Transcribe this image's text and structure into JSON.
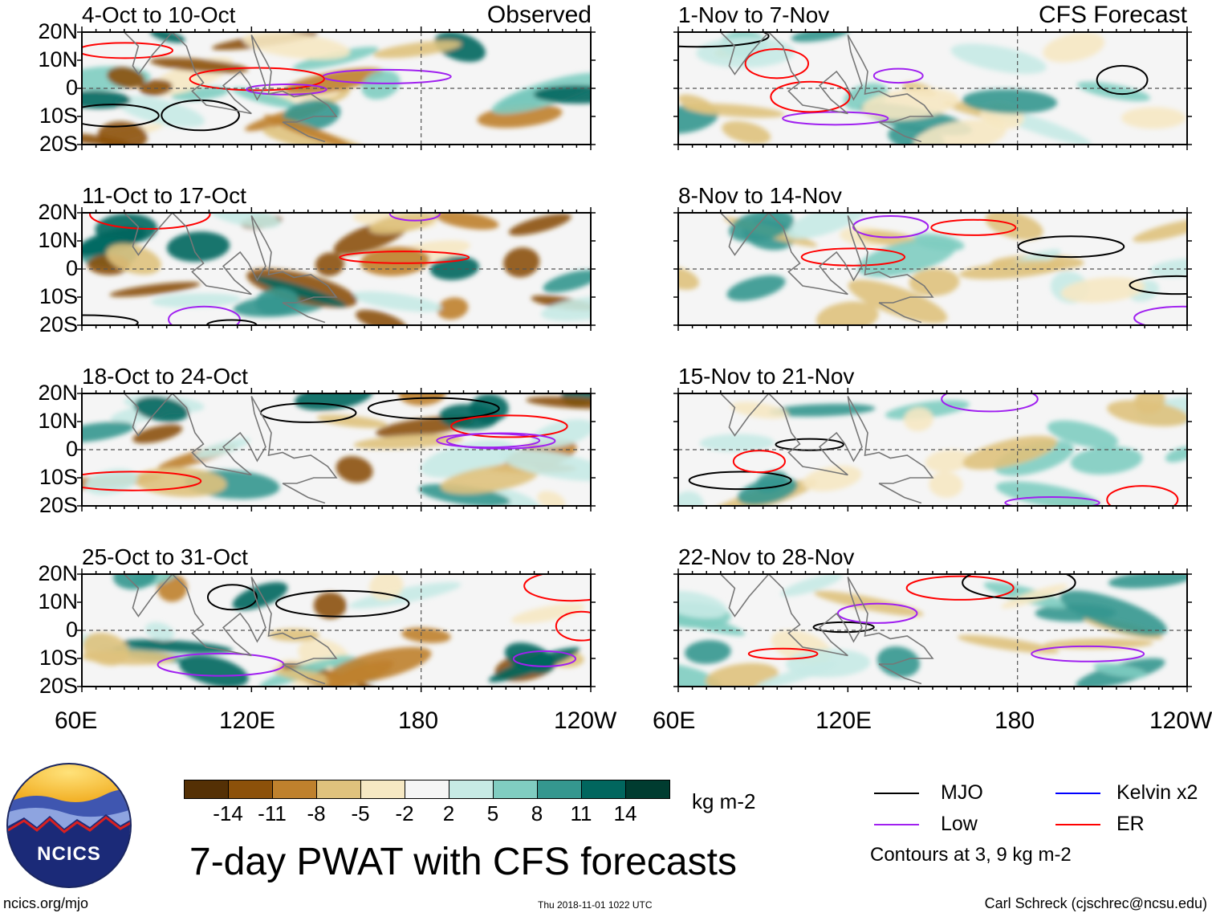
{
  "figure": {
    "title": "7-day PWAT with CFS forecasts",
    "observed_label": "Observed",
    "forecast_label": "CFS Forecast",
    "panels": [
      {
        "id": "obs1",
        "period": "4-Oct to 10-Oct"
      },
      {
        "id": "obs2",
        "period": "11-Oct to 17-Oct"
      },
      {
        "id": "obs3",
        "period": "18-Oct to 24-Oct"
      },
      {
        "id": "obs4",
        "period": "25-Oct to 31-Oct"
      },
      {
        "id": "fc1",
        "period": "1-Nov to 7-Nov"
      },
      {
        "id": "fc2",
        "period": "8-Nov to 14-Nov"
      },
      {
        "id": "fc3",
        "period": "15-Nov to 21-Nov"
      },
      {
        "id": "fc4",
        "period": "22-Nov to 28-Nov"
      }
    ],
    "lat_ticks": [
      "20N",
      "10N",
      "0",
      "10S",
      "20S"
    ],
    "lon_ticks": [
      "60E",
      "120E",
      "180",
      "120W"
    ],
    "lat_range": [
      -20,
      20
    ],
    "lon_range": [
      60,
      240
    ]
  },
  "colorbar": {
    "units": "kg m-2",
    "tick_labels": [
      "-14",
      "-11",
      "-8",
      "-5",
      "-2",
      "2",
      "5",
      "8",
      "11",
      "14"
    ],
    "colors": [
      "#543005",
      "#8c510a",
      "#bf812d",
      "#dfc27d",
      "#f6e8c3",
      "#f5f5f5",
      "#c7eae5",
      "#80cdc1",
      "#35978f",
      "#01665e",
      "#003c30"
    ]
  },
  "legend": {
    "items": [
      {
        "label": "MJO",
        "color": "#000000"
      },
      {
        "label": "Kelvin x2",
        "color": "#0000ff"
      },
      {
        "label": "Low",
        "color": "#a020f0"
      },
      {
        "label": "ER",
        "color": "#ff0000"
      }
    ],
    "note": "Contours at 3, 9 kg m-2"
  },
  "logo": {
    "text": "NCICS"
  },
  "footer": {
    "website": "ncics.org/mjo",
    "timestamp": "Thu 2018-11-01 1022 UTC",
    "credit": "Carl Schreck (cjschrec@ncsu.edu)"
  }
}
